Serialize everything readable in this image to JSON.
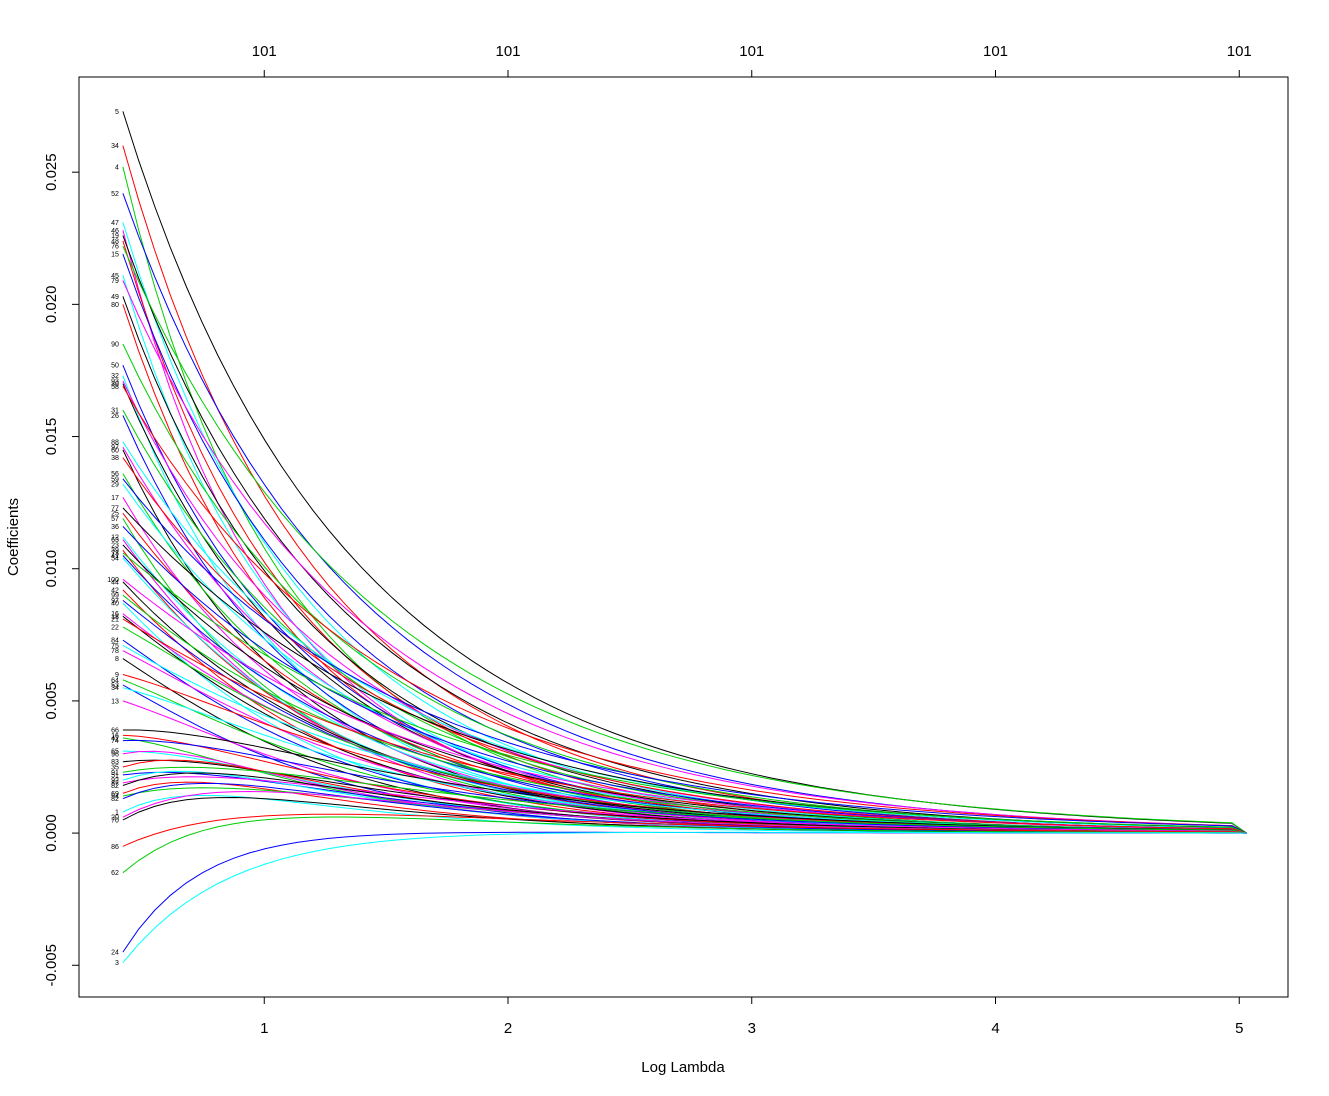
{
  "chart_data": {
    "type": "line",
    "title": "",
    "xlabel": "Log Lambda",
    "ylabel": "Coefficients",
    "xlim": [
      0.24,
      5.2
    ],
    "ylim": [
      -0.0062,
      0.0286
    ],
    "x_ticks": [
      1,
      2,
      3,
      4,
      5
    ],
    "x_tick_labels": [
      "1",
      "2",
      "3",
      "4",
      "5"
    ],
    "y_ticks": [
      -0.005,
      0.0,
      0.005,
      0.01,
      0.015,
      0.02,
      0.025
    ],
    "y_tick_labels": [
      "-0.005",
      "0.000",
      "0.005",
      "0.010",
      "0.015",
      "0.020",
      "0.025"
    ],
    "top_axis_ticks": [
      1,
      2,
      3,
      4,
      5
    ],
    "top_axis_labels": [
      "101",
      "101",
      "101",
      "101",
      "101"
    ],
    "x_start": 0.42,
    "x_end": 5.03,
    "grid": false,
    "palette": [
      "#000000",
      "#ff0000",
      "#00cd00",
      "#0000ff",
      "#00ffff",
      "#ff00ff"
    ],
    "series": [
      {
        "label": "5",
        "start": 0.0273
      },
      {
        "label": "34",
        "start": 0.026
      },
      {
        "label": "4",
        "start": 0.0252
      },
      {
        "label": "52",
        "start": 0.0242
      },
      {
        "label": "47",
        "start": 0.0231
      },
      {
        "label": "46",
        "start": 0.0228
      },
      {
        "label": "19",
        "start": 0.0226
      },
      {
        "label": "48",
        "start": 0.0224
      },
      {
        "label": "76",
        "start": 0.0222
      },
      {
        "label": "15",
        "start": 0.0219
      },
      {
        "label": "45",
        "start": 0.0211
      },
      {
        "label": "79",
        "start": 0.0209
      },
      {
        "label": "49",
        "start": 0.0203
      },
      {
        "label": "80",
        "start": 0.02
      },
      {
        "label": "90",
        "start": 0.0185
      },
      {
        "label": "50",
        "start": 0.0177
      },
      {
        "label": "32",
        "start": 0.0173
      },
      {
        "label": "93",
        "start": 0.0171
      },
      {
        "label": "30",
        "start": 0.017
      },
      {
        "label": "58",
        "start": 0.0169
      },
      {
        "label": "31",
        "start": 0.016
      },
      {
        "label": "26",
        "start": 0.0158
      },
      {
        "label": "88",
        "start": 0.0148
      },
      {
        "label": "97",
        "start": 0.0146
      },
      {
        "label": "60",
        "start": 0.0145
      },
      {
        "label": "38",
        "start": 0.0142
      },
      {
        "label": "56",
        "start": 0.0136
      },
      {
        "label": "59",
        "start": 0.0134
      },
      {
        "label": "29",
        "start": 0.0132
      },
      {
        "label": "17",
        "start": 0.0127
      },
      {
        "label": "77",
        "start": 0.0123
      },
      {
        "label": "25",
        "start": 0.0121
      },
      {
        "label": "57",
        "start": 0.0119
      },
      {
        "label": "36",
        "start": 0.0116
      },
      {
        "label": "12",
        "start": 0.0112
      },
      {
        "label": "63",
        "start": 0.0111
      },
      {
        "label": "23",
        "start": 0.0109
      },
      {
        "label": "39",
        "start": 0.0107
      },
      {
        "label": "73",
        "start": 0.0106
      },
      {
        "label": "41",
        "start": 0.0105
      },
      {
        "label": "54",
        "start": 0.0104
      },
      {
        "label": "100",
        "start": 0.0096
      },
      {
        "label": "44",
        "start": 0.0095
      },
      {
        "label": "42",
        "start": 0.0092
      },
      {
        "label": "99",
        "start": 0.009
      },
      {
        "label": "97",
        "start": 0.0088
      },
      {
        "label": "40",
        "start": 0.0087
      },
      {
        "label": "16",
        "start": 0.0083
      },
      {
        "label": "18",
        "start": 0.0082
      },
      {
        "label": "21",
        "start": 0.0081
      },
      {
        "label": "22",
        "start": 0.0078
      },
      {
        "label": "84",
        "start": 0.0073
      },
      {
        "label": "75",
        "start": 0.0071
      },
      {
        "label": "78",
        "start": 0.0069
      },
      {
        "label": "8",
        "start": 0.0066
      },
      {
        "label": "9",
        "start": 0.006
      },
      {
        "label": "64",
        "start": 0.0058
      },
      {
        "label": "53",
        "start": 0.0056
      },
      {
        "label": "34",
        "start": 0.0055
      },
      {
        "label": "13",
        "start": 0.005
      },
      {
        "label": "66",
        "start": 0.0039
      },
      {
        "label": "16",
        "start": 0.0037
      },
      {
        "label": "42",
        "start": 0.0036
      },
      {
        "label": "74",
        "start": 0.0035
      },
      {
        "label": "65",
        "start": 0.0031
      },
      {
        "label": "96",
        "start": 0.003
      },
      {
        "label": "83",
        "start": 0.0027
      },
      {
        "label": "35",
        "start": 0.0025
      },
      {
        "label": "91",
        "start": 0.0023
      },
      {
        "label": "51",
        "start": 0.0022
      },
      {
        "label": "92",
        "start": 0.002
      },
      {
        "label": "87",
        "start": 0.0019
      },
      {
        "label": "82",
        "start": 0.0018
      },
      {
        "label": "69",
        "start": 0.0015
      },
      {
        "label": "94",
        "start": 0.0014
      },
      {
        "label": "82",
        "start": 0.0013
      },
      {
        "label": "1",
        "start": 0.0008
      },
      {
        "label": "20",
        "start": 0.0006
      },
      {
        "label": "70",
        "start": 0.0005
      },
      {
        "label": "86",
        "start": -0.0005
      },
      {
        "label": "62",
        "start": -0.0015
      },
      {
        "label": "24",
        "start": -0.0045
      },
      {
        "label": "3",
        "start": -0.0049
      }
    ]
  }
}
